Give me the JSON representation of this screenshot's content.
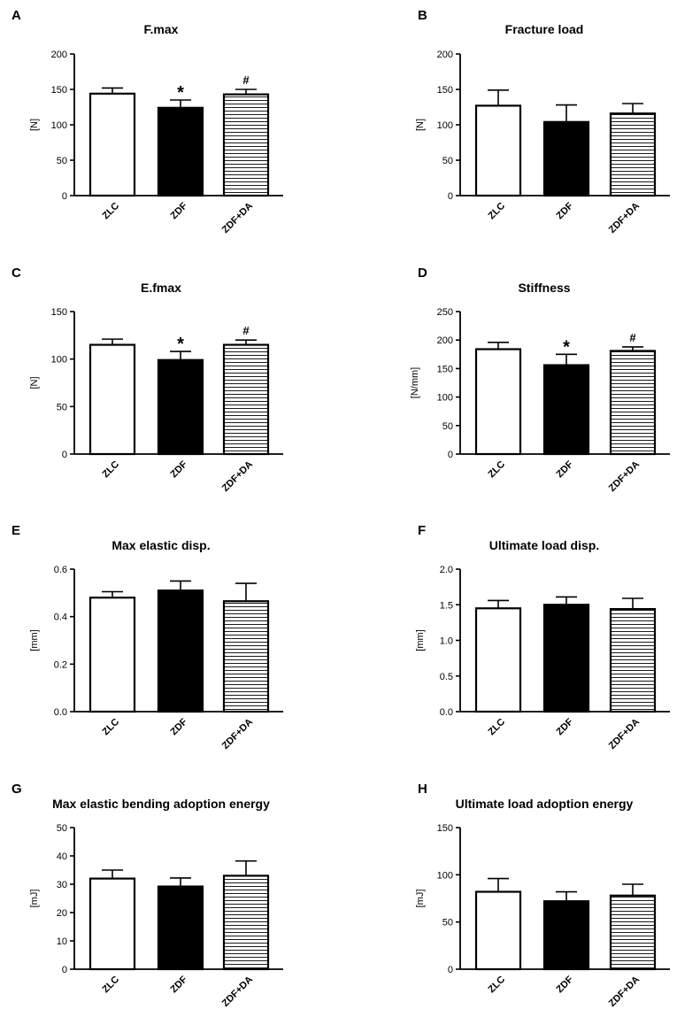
{
  "chart_data": [
    {
      "panel": "A",
      "type": "bar",
      "title": "F.max",
      "ylabel": "[N]",
      "categories": [
        "ZLC",
        "ZDF",
        "ZDF+DA"
      ],
      "values": [
        144,
        124,
        143
      ],
      "errors": [
        8,
        11,
        7
      ],
      "markers": [
        "",
        "*",
        "#"
      ],
      "ylim": [
        0,
        200
      ],
      "yticks": [
        "0",
        "50",
        "100",
        "150",
        "200"
      ]
    },
    {
      "panel": "B",
      "type": "bar",
      "title": "Fracture load",
      "ylabel": "[N]",
      "categories": [
        "ZLC",
        "ZDF",
        "ZDF+DA"
      ],
      "values": [
        127,
        104,
        116
      ],
      "errors": [
        22,
        24,
        14
      ],
      "markers": [
        "",
        "",
        ""
      ],
      "ylim": [
        0,
        200
      ],
      "yticks": [
        "0",
        "50",
        "100",
        "150",
        "200"
      ]
    },
    {
      "panel": "C",
      "type": "bar",
      "title": "E.fmax",
      "ylabel": "[N]",
      "categories": [
        "ZLC",
        "ZDF",
        "ZDF+DA"
      ],
      "values": [
        115,
        99,
        115
      ],
      "errors": [
        6,
        9,
        5
      ],
      "markers": [
        "",
        "*",
        "#"
      ],
      "ylim": [
        0,
        150
      ],
      "yticks": [
        "0",
        "50",
        "100",
        "150"
      ]
    },
    {
      "panel": "D",
      "type": "bar",
      "title": "Stiffness",
      "ylabel": "[N/mm]",
      "categories": [
        "ZLC",
        "ZDF",
        "ZDF+DA"
      ],
      "values": [
        184,
        156,
        181
      ],
      "errors": [
        12,
        19,
        7
      ],
      "markers": [
        "",
        "*",
        "#"
      ],
      "ylim": [
        0,
        250
      ],
      "yticks": [
        "0",
        "50",
        "100",
        "150",
        "200",
        "250"
      ]
    },
    {
      "panel": "E",
      "type": "bar",
      "title": "Max elastic disp.",
      "ylabel": "[mm]",
      "categories": [
        "ZLC",
        "ZDF",
        "ZDF+DA"
      ],
      "values": [
        0.48,
        0.51,
        0.465
      ],
      "errors": [
        0.025,
        0.04,
        0.075
      ],
      "markers": [
        "",
        "",
        ""
      ],
      "ylim": [
        0,
        0.6
      ],
      "yticks": [
        "0.0",
        "0.2",
        "0.4",
        "0.6"
      ]
    },
    {
      "panel": "F",
      "type": "bar",
      "title": "Ultimate load disp.",
      "ylabel": "[mm]",
      "categories": [
        "ZLC",
        "ZDF",
        "ZDF+DA"
      ],
      "values": [
        1.45,
        1.5,
        1.44
      ],
      "errors": [
        0.11,
        0.11,
        0.15
      ],
      "markers": [
        "",
        "",
        ""
      ],
      "ylim": [
        0,
        2.0
      ],
      "yticks": [
        "0.0",
        "0.5",
        "1.0",
        "1.5",
        "2.0"
      ]
    },
    {
      "panel": "G",
      "type": "bar",
      "title": "Max elastic bending adoption energy",
      "ylabel": "[mJ]",
      "categories": [
        "ZLC",
        "ZDF",
        "ZDF+DA"
      ],
      "values": [
        32,
        29.2,
        33
      ],
      "errors": [
        3,
        3,
        5.2
      ],
      "markers": [
        "",
        "",
        ""
      ],
      "ylim": [
        0,
        50
      ],
      "yticks": [
        "0",
        "10",
        "20",
        "30",
        "40",
        "50"
      ]
    },
    {
      "panel": "H",
      "type": "bar",
      "title": "Ultimate load adoption energy",
      "ylabel": "[mJ]",
      "categories": [
        "ZLC",
        "ZDF",
        "ZDF+DA"
      ],
      "values": [
        82,
        72,
        78
      ],
      "errors": [
        14,
        10,
        12
      ],
      "markers": [
        "",
        "",
        ""
      ],
      "ylim": [
        0,
        150
      ],
      "yticks": [
        "0",
        "50",
        "100",
        "150"
      ]
    }
  ]
}
